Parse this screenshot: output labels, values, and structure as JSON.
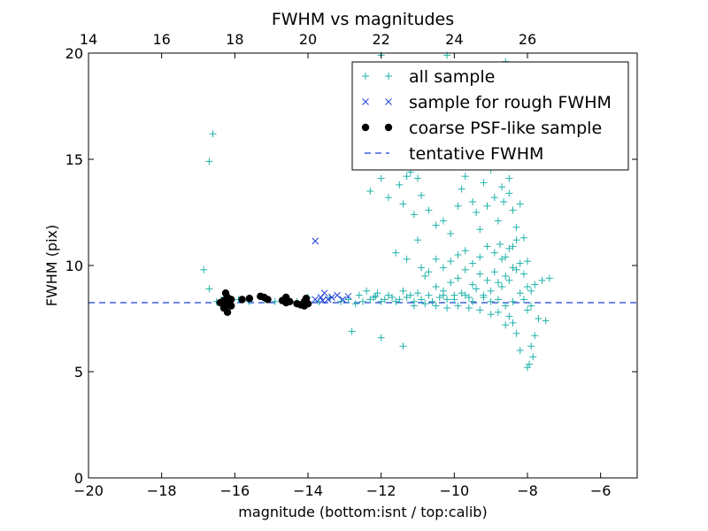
{
  "chart_data": {
    "type": "scatter",
    "title": "FWHM vs magnitudes",
    "xlabel": "magnitude (bottom:isnt / top:calib)",
    "ylabel": "FWHM (pix)",
    "xlim": [
      -20,
      -5
    ],
    "ylim": [
      0,
      20
    ],
    "x_ticks": [
      -20,
      -18,
      -16,
      -14,
      -12,
      -10,
      -8,
      -6
    ],
    "x_tick_labels": [
      "−20",
      "−18",
      "−16",
      "−14",
      "−12",
      "−10",
      "−8",
      "−6"
    ],
    "y_ticks": [
      0,
      5,
      10,
      15,
      20
    ],
    "y_tick_labels": [
      "0",
      "5",
      "10",
      "15",
      "20"
    ],
    "top_axis": {
      "offset": 34,
      "ticks": [
        14,
        16,
        18,
        20,
        22,
        24,
        26
      ],
      "tick_labels": [
        "14",
        "16",
        "18",
        "20",
        "22",
        "24",
        "26"
      ]
    },
    "legend_position": "top-right",
    "colors": {
      "all": "#20b2aa",
      "rough": "#1f3fd8",
      "coarse": "#000000",
      "fwhm": "#1f3fd8"
    },
    "series": [
      {
        "name": "all sample",
        "marker": "plus",
        "points": [
          [
            -16.6,
            16.2
          ],
          [
            -16.7,
            14.9
          ],
          [
            -16.85,
            9.8
          ],
          [
            -16.7,
            8.9
          ],
          [
            -16.5,
            8.3
          ],
          [
            -16.3,
            8.5
          ],
          [
            -16.1,
            8.2
          ],
          [
            -15.9,
            8.4
          ],
          [
            -15.6,
            8.3
          ],
          [
            -15.2,
            8.4
          ],
          [
            -14.9,
            8.3
          ],
          [
            -14.6,
            8.4
          ],
          [
            -14.3,
            8.3
          ],
          [
            -14.0,
            8.5
          ],
          [
            -13.7,
            8.3
          ],
          [
            -13.4,
            8.5
          ],
          [
            -13.1,
            8.3
          ],
          [
            -12.9,
            8.4
          ],
          [
            -12.7,
            8.2
          ],
          [
            -12.6,
            8.6
          ],
          [
            -12.5,
            8.3
          ],
          [
            -12.4,
            8.8
          ],
          [
            -12.3,
            8.4
          ],
          [
            -12.2,
            8.5
          ],
          [
            -12.1,
            8.7
          ],
          [
            -12.0,
            8.3
          ],
          [
            -11.9,
            8.4
          ],
          [
            -11.8,
            8.6
          ],
          [
            -11.7,
            8.5
          ],
          [
            -11.6,
            8.3
          ],
          [
            -11.5,
            8.4
          ],
          [
            -11.4,
            8.8
          ],
          [
            -11.3,
            8.5
          ],
          [
            -11.2,
            8.6
          ],
          [
            -11.1,
            8.3
          ],
          [
            -11.0,
            8.7
          ],
          [
            -10.9,
            8.4
          ],
          [
            -10.8,
            9.5
          ],
          [
            -10.7,
            8.6
          ],
          [
            -10.6,
            8.3
          ],
          [
            -10.5,
            9.0
          ],
          [
            -10.4,
            8.5
          ],
          [
            -10.3,
            8.8
          ],
          [
            -10.2,
            8.4
          ],
          [
            -10.1,
            9.2
          ],
          [
            -10.0,
            8.6
          ],
          [
            -9.9,
            9.4
          ],
          [
            -9.8,
            8.7
          ],
          [
            -9.7,
            9.8
          ],
          [
            -9.6,
            8.5
          ],
          [
            -9.5,
            9.1
          ],
          [
            -9.4,
            8.9
          ],
          [
            -9.3,
            9.6
          ],
          [
            -9.2,
            8.6
          ],
          [
            -9.1,
            9.3
          ],
          [
            -9.0,
            8.8
          ],
          [
            -8.9,
            9.7
          ],
          [
            -8.8,
            9.2
          ],
          [
            -8.7,
            10.3
          ],
          [
            -8.6,
            9.5
          ],
          [
            -8.5,
            10.8
          ],
          [
            -8.4,
            9.9
          ],
          [
            -8.3,
            11.2
          ],
          [
            -8.2,
            10.1
          ],
          [
            -8.1,
            9.6
          ],
          [
            -8.0,
            9.0
          ],
          [
            -7.9,
            8.8
          ],
          [
            -7.8,
            9.1
          ],
          [
            -7.6,
            9.3
          ],
          [
            -7.4,
            9.4
          ],
          [
            -7.5,
            7.4
          ],
          [
            -7.7,
            7.5
          ],
          [
            -7.8,
            6.7
          ],
          [
            -7.9,
            6.2
          ],
          [
            -8.0,
            5.2
          ],
          [
            -7.95,
            5.35
          ],
          [
            -7.85,
            5.7
          ],
          [
            -8.2,
            6.0
          ],
          [
            -8.3,
            6.8
          ],
          [
            -8.4,
            7.3
          ],
          [
            -8.5,
            7.6
          ],
          [
            -8.6,
            7.2
          ],
          [
            -8.8,
            7.8
          ],
          [
            -9.0,
            7.7
          ],
          [
            -9.3,
            7.9
          ],
          [
            -9.6,
            8.0
          ],
          [
            -9.9,
            8.1
          ],
          [
            -10.2,
            8.0
          ],
          [
            -10.5,
            8.1
          ],
          [
            -10.8,
            8.2
          ],
          [
            -11.1,
            8.1
          ],
          [
            -12.0,
            6.6
          ],
          [
            -11.4,
            6.2
          ],
          [
            -12.8,
            6.9
          ],
          [
            -11.3,
            10.3
          ],
          [
            -11.6,
            10.6
          ],
          [
            -11.0,
            11.2
          ],
          [
            -10.9,
            13.3
          ],
          [
            -11.0,
            14.1
          ],
          [
            -11.2,
            14.4
          ],
          [
            -11.3,
            14.2
          ],
          [
            -11.5,
            13.8
          ],
          [
            -11.8,
            13.2
          ],
          [
            -12.0,
            14.1
          ],
          [
            -12.3,
            13.5
          ],
          [
            -11.4,
            12.9
          ],
          [
            -11.1,
            12.4
          ],
          [
            -10.7,
            12.6
          ],
          [
            -10.5,
            11.9
          ],
          [
            -10.3,
            12.1
          ],
          [
            -10.1,
            11.5
          ],
          [
            -9.9,
            12.8
          ],
          [
            -9.8,
            13.6
          ],
          [
            -9.7,
            14.2
          ],
          [
            -9.5,
            13.0
          ],
          [
            -9.4,
            12.5
          ],
          [
            -9.3,
            11.7
          ],
          [
            -9.2,
            13.9
          ],
          [
            -9.1,
            12.8
          ],
          [
            -9.0,
            14.5
          ],
          [
            -8.9,
            13.2
          ],
          [
            -8.8,
            12.1
          ],
          [
            -8.7,
            13.7
          ],
          [
            -8.6,
            14.8
          ],
          [
            -8.5,
            13.4
          ],
          [
            -8.4,
            12.6
          ],
          [
            -8.3,
            11.8
          ],
          [
            -8.2,
            12.9
          ],
          [
            -8.1,
            11.3
          ],
          [
            -8.0,
            10.2
          ],
          [
            -8.55,
            15.6
          ],
          [
            -8.45,
            16.4
          ],
          [
            -8.5,
            17.2
          ],
          [
            -8.4,
            18.0
          ],
          [
            -8.45,
            18.9
          ],
          [
            -8.6,
            19.6
          ],
          [
            -8.5,
            14.1
          ],
          [
            -8.35,
            15.0
          ],
          [
            -8.65,
            13.0
          ],
          [
            -8.75,
            11.0
          ],
          [
            -8.9,
            10.6
          ],
          [
            -9.1,
            10.9
          ],
          [
            -9.3,
            10.4
          ],
          [
            -9.5,
            10.1
          ],
          [
            -9.7,
            10.7
          ],
          [
            -9.9,
            10.5
          ],
          [
            -10.1,
            10.2
          ],
          [
            -10.3,
            9.9
          ],
          [
            -10.5,
            10.3
          ],
          [
            -10.7,
            9.7
          ],
          [
            -10.9,
            9.9
          ],
          [
            -8.6,
            10.4
          ],
          [
            -8.4,
            10.9
          ],
          [
            -8.3,
            9.8
          ],
          [
            -8.5,
            9.3
          ],
          [
            -8.7,
            9.0
          ],
          [
            -8.2,
            8.7
          ],
          [
            -8.1,
            8.4
          ],
          [
            -7.9,
            8.1
          ],
          [
            -8.0,
            7.9
          ],
          [
            -8.4,
            8.3
          ],
          [
            -8.6,
            8.1
          ],
          [
            -8.8,
            8.4
          ],
          [
            -9.0,
            8.3
          ],
          [
            -9.2,
            8.5
          ],
          [
            -9.5,
            8.3
          ],
          [
            -9.7,
            8.6
          ],
          [
            -10.0,
            8.4
          ],
          [
            -10.3,
            8.6
          ],
          [
            -12.0,
            19.9
          ],
          [
            -11.7,
            14.8
          ],
          [
            -12.6,
            14.9
          ],
          [
            -10.2,
            19.9
          ],
          [
            -12.15,
            8.55
          ]
        ]
      },
      {
        "name": "sample for rough FWHM",
        "marker": "cross",
        "points": [
          [
            -13.8,
            11.15
          ],
          [
            -13.8,
            8.4
          ],
          [
            -13.65,
            8.5
          ],
          [
            -13.55,
            8.7
          ],
          [
            -13.45,
            8.4
          ],
          [
            -13.35,
            8.5
          ],
          [
            -13.2,
            8.6
          ],
          [
            -13.05,
            8.4
          ],
          [
            -12.9,
            8.55
          ],
          [
            -13.6,
            8.35
          ]
        ]
      },
      {
        "name": "coarse PSF-like sample",
        "marker": "dot",
        "points": [
          [
            -16.4,
            8.25
          ],
          [
            -16.3,
            8.3
          ],
          [
            -16.25,
            8.7
          ],
          [
            -16.2,
            8.5
          ],
          [
            -16.15,
            8.3
          ],
          [
            -16.2,
            8.15
          ],
          [
            -16.3,
            8.35
          ],
          [
            -16.1,
            8.1
          ],
          [
            -16.2,
            7.8
          ],
          [
            -16.3,
            8.0
          ],
          [
            -16.1,
            8.4
          ],
          [
            -15.8,
            8.4
          ],
          [
            -15.6,
            8.45
          ],
          [
            -15.3,
            8.55
          ],
          [
            -15.2,
            8.5
          ],
          [
            -15.1,
            8.4
          ],
          [
            -14.7,
            8.35
          ],
          [
            -14.6,
            8.5
          ],
          [
            -14.6,
            8.25
          ],
          [
            -14.5,
            8.3
          ],
          [
            -14.3,
            8.2
          ],
          [
            -14.2,
            8.15
          ],
          [
            -14.1,
            8.3
          ],
          [
            -14.05,
            8.45
          ],
          [
            -14.0,
            8.2
          ],
          [
            -14.1,
            8.1
          ]
        ]
      }
    ],
    "hline": {
      "name": "tentative FWHM",
      "y": 8.25
    }
  }
}
